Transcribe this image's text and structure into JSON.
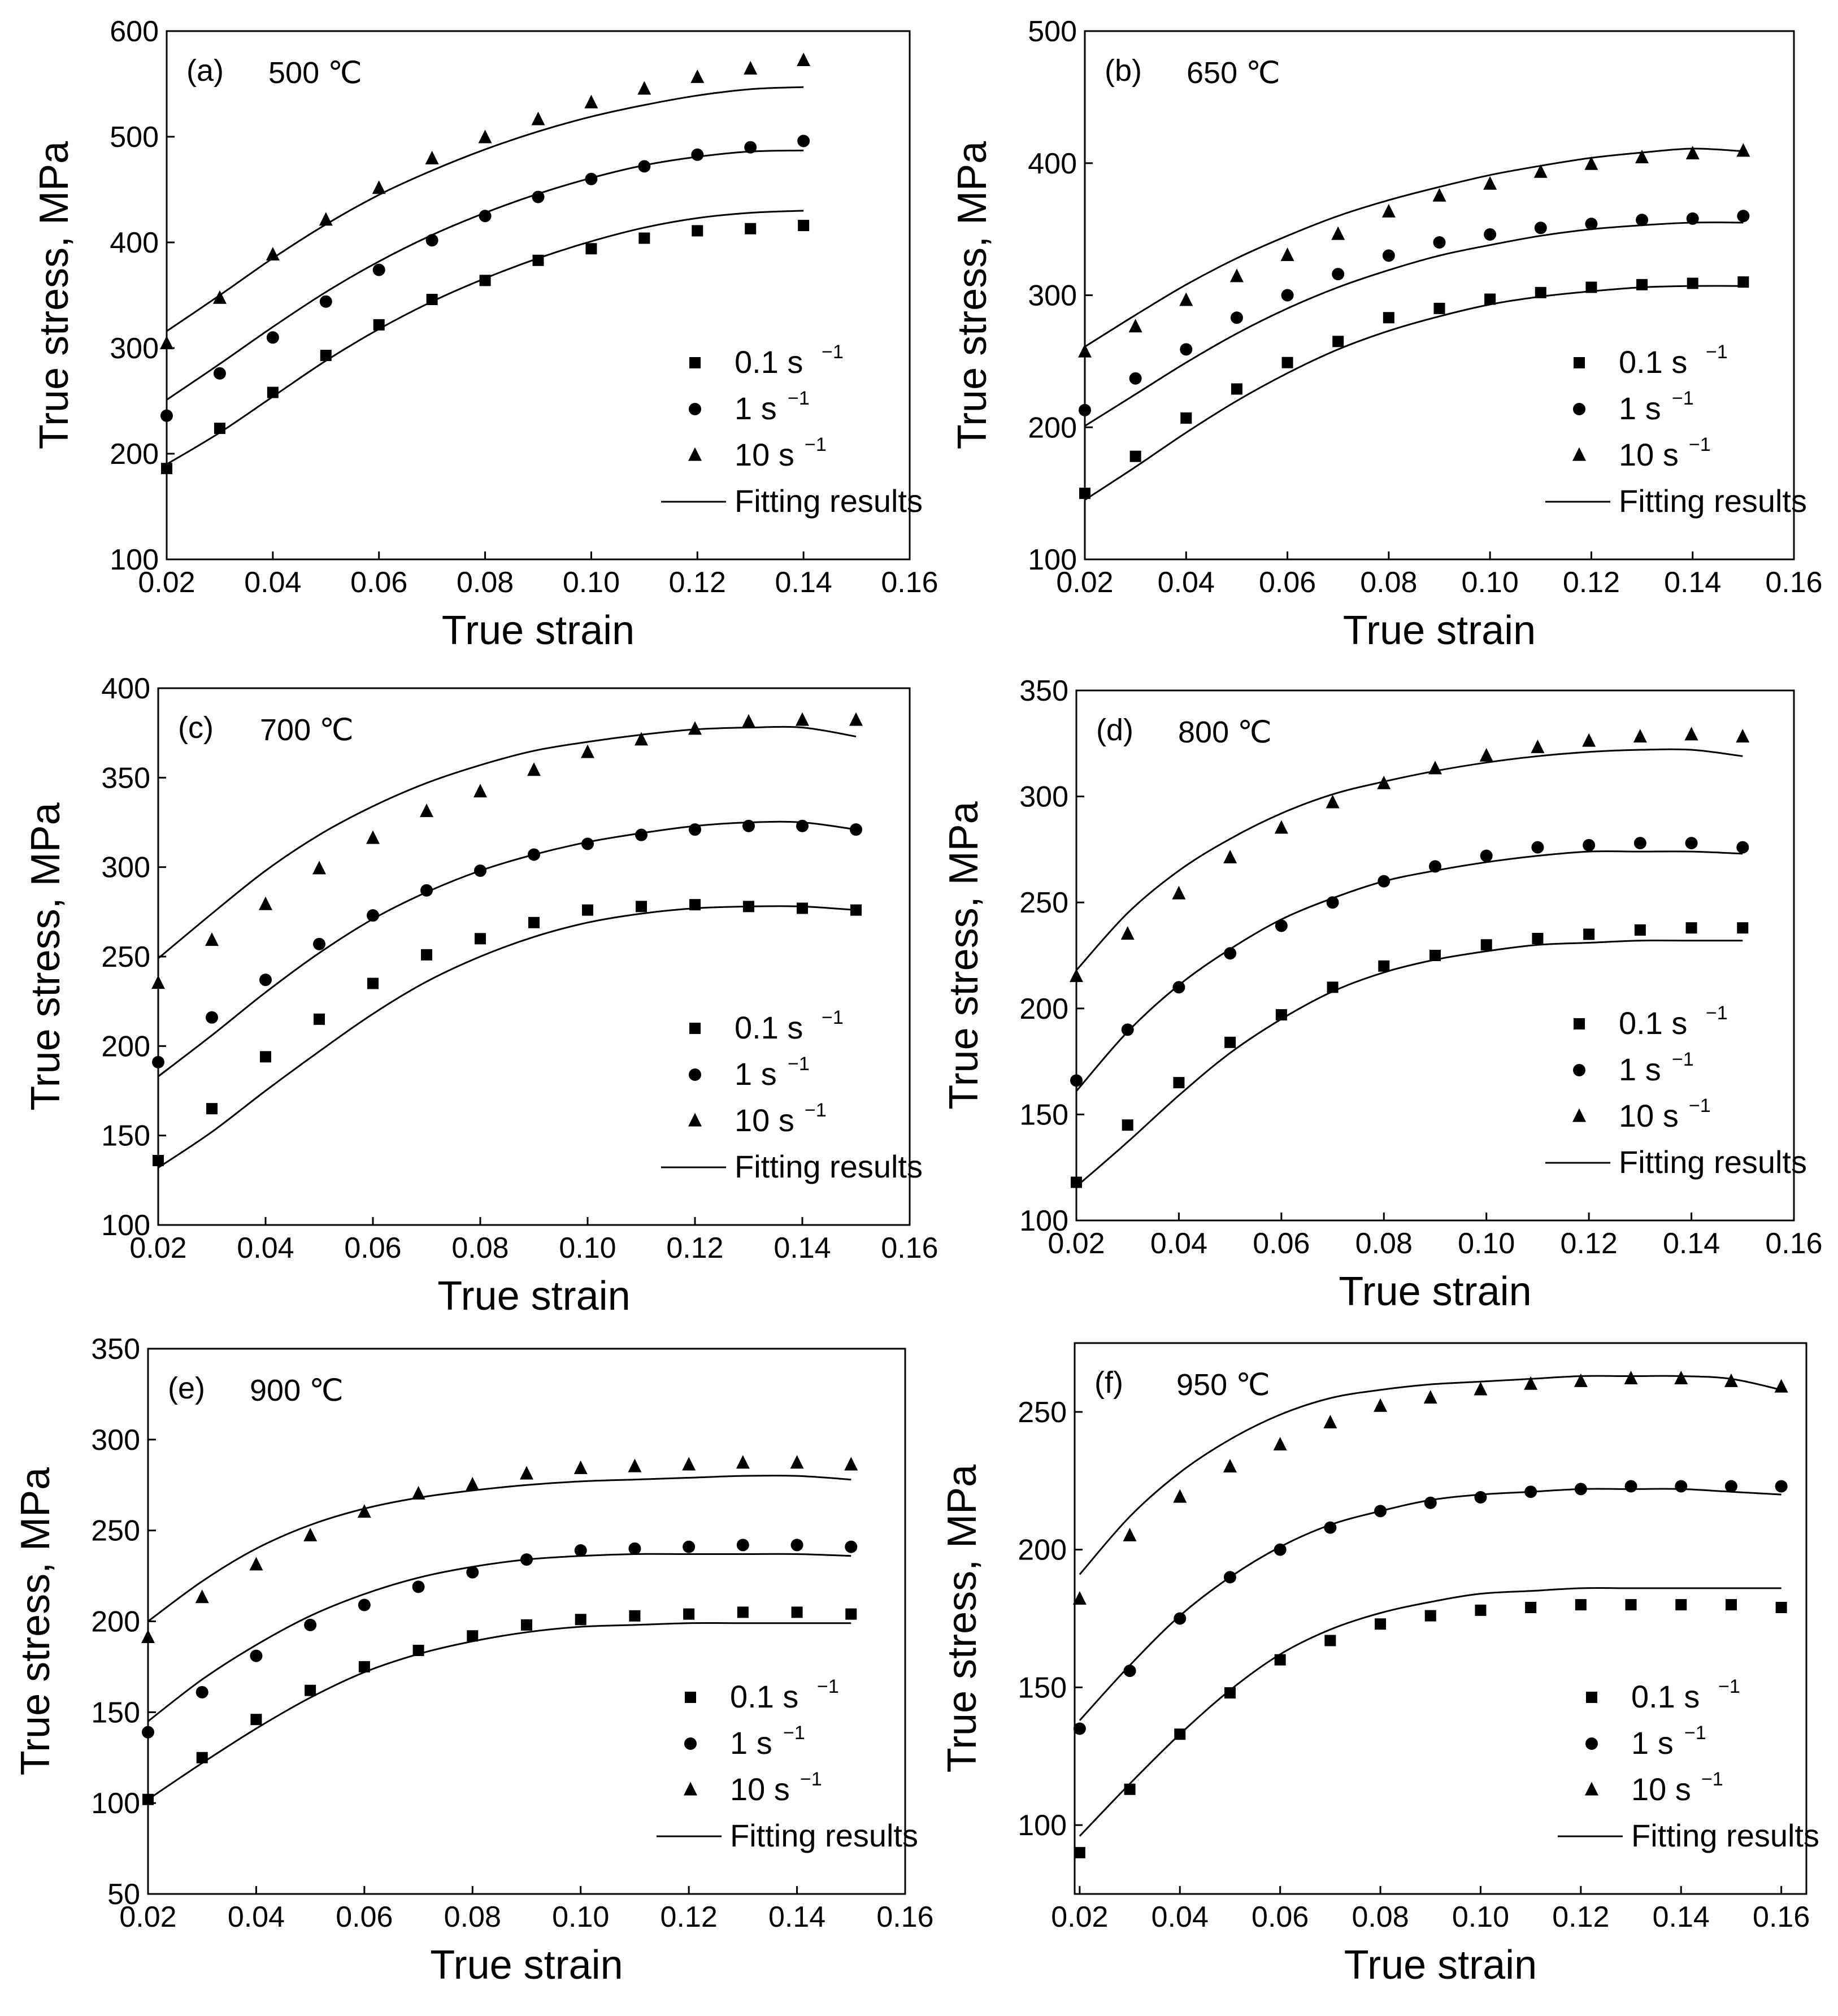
{
  "figure": {
    "legend_labels": [
      "0.1 s",
      "1 s",
      "10 s",
      "Fitting results"
    ],
    "legend_superscript": "−1"
  },
  "chart_data": [
    {
      "type": "scatter",
      "panel": "(a)",
      "title": "500 ℃",
      "xlabel": "True strain",
      "ylabel": "True stress, MPa",
      "xlim": [
        0.02,
        0.16
      ],
      "ylim": [
        100,
        600
      ],
      "xticks": [
        "0.02",
        "0.04",
        "0.06",
        "0.08",
        "0.10",
        "0.12",
        "0.14",
        "0.16"
      ],
      "yticks": [
        "100",
        "200",
        "300",
        "400",
        "500",
        "600"
      ],
      "legend_position": "lower-right",
      "x": [
        0.02,
        0.03,
        0.04,
        0.05,
        0.06,
        0.07,
        0.08,
        0.09,
        0.1,
        0.11,
        0.12,
        0.13,
        0.14
      ],
      "series": [
        {
          "name": "0.1 s-1",
          "marker": "square",
          "values": [
            186,
            224,
            258,
            293,
            322,
            346,
            364,
            383,
            394,
            404,
            411,
            413,
            416
          ],
          "fit": [
            190,
            220,
            254,
            288,
            318,
            344,
            366,
            385,
            401,
            414,
            423,
            428,
            430
          ]
        },
        {
          "name": "1 s-1",
          "marker": "circle",
          "values": [
            236,
            276,
            310,
            344,
            374,
            402,
            425,
            443,
            460,
            472,
            483,
            490,
            496
          ],
          "fit": [
            251,
            285,
            320,
            353,
            382,
            407,
            428,
            446,
            461,
            473,
            481,
            486,
            487
          ]
        },
        {
          "name": "10 s-1",
          "marker": "triangle",
          "values": [
            304,
            347,
            388,
            421,
            451,
            479,
            499,
            516,
            532,
            545,
            556,
            564,
            572
          ],
          "fit": [
            316,
            350,
            385,
            417,
            445,
            468,
            488,
            505,
            519,
            530,
            539,
            545,
            547
          ]
        }
      ]
    },
    {
      "type": "scatter",
      "panel": "(b)",
      "title": "650 ℃",
      "xlabel": "True strain",
      "ylabel": "True stress, MPa",
      "xlim": [
        0.02,
        0.16
      ],
      "ylim": [
        100,
        500
      ],
      "xticks": [
        "0.02",
        "0.04",
        "0.06",
        "0.08",
        "0.10",
        "0.12",
        "0.14",
        "0.16"
      ],
      "yticks": [
        "100",
        "200",
        "300",
        "400",
        "500"
      ],
      "legend_position": "lower-right",
      "x": [
        0.02,
        0.03,
        0.04,
        0.05,
        0.06,
        0.07,
        0.08,
        0.09,
        0.1,
        0.11,
        0.12,
        0.13,
        0.14,
        0.15
      ],
      "series": [
        {
          "name": "0.1 s-1",
          "marker": "square",
          "values": [
            150,
            178,
            207,
            229,
            249,
            265,
            283,
            290,
            297,
            302,
            306,
            308,
            309,
            310
          ],
          "fit": [
            145,
            170,
            196,
            220,
            241,
            259,
            273,
            284,
            293,
            299,
            303,
            306,
            307,
            307
          ]
        },
        {
          "name": "1 s-1",
          "marker": "circle",
          "values": [
            213,
            237,
            259,
            283,
            300,
            316,
            330,
            340,
            346,
            351,
            354,
            357,
            358,
            360
          ],
          "fit": [
            201,
            225,
            249,
            271,
            290,
            306,
            319,
            330,
            338,
            345,
            350,
            353,
            355,
            355
          ]
        },
        {
          "name": "10 s-1",
          "marker": "triangle",
          "values": [
            257,
            276,
            296,
            314,
            330,
            346,
            363,
            375,
            384,
            393,
            399,
            404,
            407,
            409
          ],
          "fit": [
            261,
            285,
            308,
            328,
            345,
            360,
            372,
            382,
            391,
            398,
            404,
            408,
            411,
            409
          ]
        }
      ]
    },
    {
      "type": "scatter",
      "panel": "(c)",
      "title": "700 ℃",
      "xlabel": "True strain",
      "ylabel": "True stress, MPa",
      "xlim": [
        0.02,
        0.16
      ],
      "ylim": [
        100,
        400
      ],
      "xticks": [
        "0.02",
        "0.04",
        "0.06",
        "0.08",
        "0.10",
        "0.12",
        "0.14",
        "0.16"
      ],
      "yticks": [
        "100",
        "150",
        "200",
        "250",
        "300",
        "350",
        "400"
      ],
      "legend_position": "lower-right",
      "x": [
        0.02,
        0.03,
        0.04,
        0.05,
        0.06,
        0.07,
        0.08,
        0.09,
        0.1,
        0.11,
        0.12,
        0.13,
        0.14,
        0.15
      ],
      "series": [
        {
          "name": "0.1 s-1",
          "marker": "square",
          "values": [
            136,
            165,
            194,
            215,
            235,
            251,
            260,
            269,
            276,
            278,
            279,
            278,
            277,
            276
          ],
          "fit": [
            132,
            152,
            175,
            197,
            218,
            236,
            250,
            261,
            269,
            274,
            277,
            278,
            278,
            276
          ]
        },
        {
          "name": "1 s-1",
          "marker": "circle",
          "values": [
            191,
            216,
            237,
            257,
            273,
            287,
            298,
            307,
            313,
            318,
            321,
            323,
            323,
            321
          ],
          "fit": [
            183,
            206,
            230,
            252,
            271,
            286,
            298,
            307,
            314,
            319,
            323,
            325,
            325,
            321
          ]
        },
        {
          "name": "10 s-1",
          "marker": "triangle",
          "values": [
            235,
            259,
            279,
            299,
            316,
            331,
            342,
            354,
            364,
            371,
            377,
            381,
            382,
            382
          ],
          "fit": [
            249,
            274,
            298,
            318,
            334,
            347,
            357,
            365,
            370,
            374,
            377,
            378,
            378,
            373
          ]
        }
      ]
    },
    {
      "type": "scatter",
      "panel": "(d)",
      "title": "800 ℃",
      "xlabel": "True strain",
      "ylabel": "True stress, MPa",
      "xlim": [
        0.02,
        0.16
      ],
      "ylim": [
        100,
        350
      ],
      "xticks": [
        "0.02",
        "0.04",
        "0.06",
        "0.08",
        "0.10",
        "0.12",
        "0.14",
        "0.16"
      ],
      "yticks": [
        "100",
        "150",
        "200",
        "250",
        "300",
        "350"
      ],
      "legend_position": "lower-right",
      "x": [
        0.02,
        0.03,
        0.04,
        0.05,
        0.06,
        0.07,
        0.08,
        0.09,
        0.1,
        0.11,
        0.12,
        0.13,
        0.14,
        0.15
      ],
      "series": [
        {
          "name": "0.1 s-1",
          "marker": "square",
          "values": [
            118,
            145,
            165,
            184,
            197,
            210,
            220,
            225,
            230,
            233,
            235,
            237,
            238,
            238
          ],
          "fit": [
            116,
            137,
            159,
            179,
            195,
            208,
            217,
            223,
            227,
            230,
            231,
            232,
            232,
            232
          ]
        },
        {
          "name": "1 s-1",
          "marker": "circle",
          "values": [
            166,
            190,
            210,
            226,
            239,
            250,
            260,
            267,
            272,
            276,
            277,
            278,
            278,
            276
          ],
          "fit": [
            161,
            189,
            211,
            228,
            242,
            252,
            260,
            265,
            269,
            272,
            274,
            274,
            274,
            273
          ]
        },
        {
          "name": "10 s-1",
          "marker": "triangle",
          "values": [
            215,
            235,
            254,
            271,
            285,
            297,
            306,
            313,
            319,
            323,
            326,
            328,
            329,
            328
          ],
          "fit": [
            218,
            245,
            265,
            280,
            292,
            301,
            307,
            312,
            316,
            319,
            321,
            322,
            322,
            319
          ]
        }
      ]
    },
    {
      "type": "scatter",
      "panel": "(e)",
      "title": "900 ℃",
      "xlabel": "True strain",
      "ylabel": "True stress, MPa",
      "xlim": [
        0.02,
        0.16
      ],
      "ylim": [
        50,
        350
      ],
      "xticks": [
        "0.02",
        "0.04",
        "0.06",
        "0.08",
        "0.10",
        "0.12",
        "0.14",
        "0.16"
      ],
      "yticks": [
        "50",
        "100",
        "150",
        "200",
        "250",
        "300",
        "350"
      ],
      "legend_position": "lower-right",
      "x": [
        0.02,
        0.03,
        0.04,
        0.05,
        0.06,
        0.07,
        0.08,
        0.09,
        0.1,
        0.11,
        0.12,
        0.13,
        0.14,
        0.15
      ],
      "series": [
        {
          "name": "0.1 s-1",
          "marker": "square",
          "values": [
            102,
            125,
            146,
            162,
            175,
            184,
            192,
            198,
            201,
            203,
            204,
            205,
            205,
            204
          ],
          "fit": [
            102,
            122,
            141,
            158,
            172,
            182,
            189,
            194,
            197,
            198,
            199,
            199,
            199,
            199
          ]
        },
        {
          "name": "1 s-1",
          "marker": "circle",
          "values": [
            139,
            161,
            181,
            198,
            209,
            219,
            227,
            234,
            239,
            240,
            241,
            242,
            242,
            241
          ],
          "fit": [
            145,
            168,
            187,
            203,
            215,
            224,
            230,
            234,
            236,
            237,
            237,
            237,
            237,
            236
          ]
        },
        {
          "name": "10 s-1",
          "marker": "triangle",
          "values": [
            191,
            213,
            231,
            247,
            260,
            270,
            275,
            281,
            284,
            285,
            286,
            287,
            287,
            286
          ],
          "fit": [
            200,
            222,
            240,
            253,
            262,
            268,
            272,
            275,
            277,
            278,
            279,
            280,
            280,
            278
          ]
        }
      ]
    },
    {
      "type": "scatter",
      "panel": "(f)",
      "title": "950 ℃",
      "xlabel": "True strain",
      "ylabel": "True stress, MPa",
      "xlim": [
        0.019,
        0.165
      ],
      "ylim": [
        75,
        275
      ],
      "xticks": [
        "0.02",
        "0.04",
        "0.06",
        "0.08",
        "0.10",
        "0.12",
        "0.14",
        "0.16"
      ],
      "yticks": [
        "100",
        "150",
        "200",
        "250"
      ],
      "legend_position": "lower-right",
      "x": [
        0.02,
        0.03,
        0.04,
        0.05,
        0.06,
        0.07,
        0.08,
        0.09,
        0.1,
        0.11,
        0.12,
        0.13,
        0.14,
        0.15,
        0.16
      ],
      "series": [
        {
          "name": "0.1 s-1",
          "marker": "square",
          "values": [
            90,
            113,
            133,
            148,
            160,
            167,
            173,
            176,
            178,
            179,
            180,
            180,
            180,
            180,
            179
          ],
          "fit": [
            96,
            115,
            133,
            149,
            162,
            171,
            177,
            181,
            184,
            185,
            186,
            186,
            186,
            186,
            186
          ]
        },
        {
          "name": "1 s-1",
          "marker": "circle",
          "values": [
            135,
            156,
            175,
            190,
            200,
            208,
            214,
            217,
            219,
            221,
            222,
            223,
            223,
            223,
            223
          ],
          "fit": [
            138,
            158,
            176,
            190,
            201,
            209,
            214,
            218,
            220,
            221,
            222,
            222,
            222,
            221,
            220
          ]
        },
        {
          "name": "10 s-1",
          "marker": "triangle",
          "values": [
            182,
            205,
            219,
            230,
            238,
            246,
            252,
            255,
            258,
            260,
            261,
            262,
            262,
            261,
            259
          ],
          "fit": [
            191,
            212,
            228,
            240,
            249,
            255,
            258,
            260,
            261,
            262,
            263,
            263,
            263,
            262,
            258
          ]
        }
      ]
    }
  ]
}
